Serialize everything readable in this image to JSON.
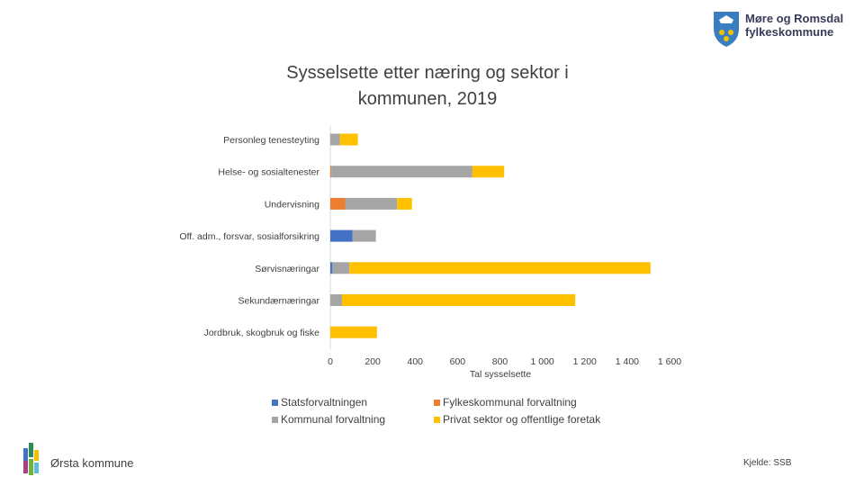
{
  "header": {
    "org_line1": "Møre og Romsdal",
    "org_line2": "fylkeskommune"
  },
  "footer": {
    "municipality": "Ørsta kommune",
    "source": "Kjelde: SSB"
  },
  "colors": {
    "statsforvaltningen": "#4472c4",
    "fylkeskommunal": "#ed7d31",
    "kommunal": "#a5a5a5",
    "privat": "#ffc000"
  },
  "chart_data": {
    "type": "bar",
    "orientation": "horizontal",
    "stacked": true,
    "title": "Sysselsette etter næring og sektor i kommunen, 2019",
    "xlabel": "Tal sysselsette",
    "ylabel": "",
    "xlim": [
      0,
      1600
    ],
    "xticks": [
      "0",
      "200",
      "400",
      "600",
      "800",
      "1 000",
      "1 200",
      "1 400",
      "1 600"
    ],
    "categories": [
      "Personleg tenesteyting",
      "Helse- og sosialtenester",
      "Undervisning",
      "Off. adm., forsvar, sosialforsikring",
      "Sørvisnæringar",
      "Sekundærnæringar",
      "Jordbruk, skogbruk og fiske"
    ],
    "series": [
      {
        "name": "Statsforvaltningen",
        "color": "#4472c4",
        "values": [
          0,
          0,
          0,
          105,
          10,
          0,
          0
        ]
      },
      {
        "name": "Fylkeskommunal forvaltning",
        "color": "#ed7d31",
        "values": [
          0,
          5,
          70,
          0,
          0,
          0,
          0
        ]
      },
      {
        "name": "Kommunal forvaltning",
        "color": "#a5a5a5",
        "values": [
          45,
          665,
          245,
          110,
          80,
          55,
          0
        ]
      },
      {
        "name": "Privat sektor og offentlige foretak",
        "color": "#ffc000",
        "values": [
          85,
          150,
          70,
          0,
          1420,
          1100,
          220
        ]
      }
    ],
    "legend_position": "bottom",
    "grid": false
  }
}
